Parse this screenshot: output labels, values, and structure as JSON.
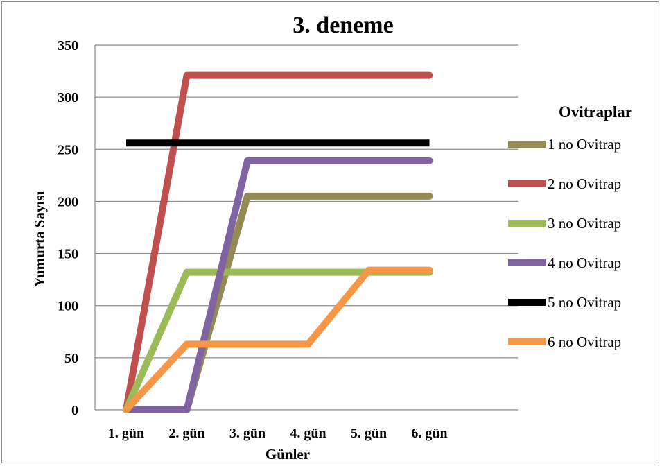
{
  "chart_data": {
    "type": "line",
    "title": "3. deneme",
    "xlabel": "Günler",
    "ylabel": "Yumurta  Sayısı",
    "categories": [
      "1. gün",
      "2. gün",
      "3. gün",
      "4. gün",
      "5. gün",
      "6. gün"
    ],
    "ylim": [
      0,
      350
    ],
    "yticks": [
      "0",
      "50",
      "100",
      "150",
      "200",
      "250",
      "300",
      "350"
    ],
    "grid": true,
    "legend_title": "Ovitraplar",
    "legend_position": "right",
    "series": [
      {
        "name": "1 no Ovitrap",
        "color": "#948a54",
        "values": [
          0,
          0,
          205,
          205,
          205,
          205
        ]
      },
      {
        "name": "2 no Ovitrap",
        "color": "#c0504d",
        "values": [
          0,
          321,
          321,
          321,
          321,
          321
        ]
      },
      {
        "name": "3 no Ovitrap",
        "color": "#9bbb59",
        "values": [
          0,
          132,
          132,
          132,
          132,
          132
        ]
      },
      {
        "name": "4 no Ovitrap",
        "color": "#8064a2",
        "values": [
          0,
          0,
          239,
          239,
          239,
          239
        ]
      },
      {
        "name": "5 no Ovitrap",
        "color": "#000000",
        "values": [
          256,
          256,
          256,
          256,
          256,
          256
        ]
      },
      {
        "name": "6 no Ovitrap",
        "color": "#f79646",
        "values": [
          0,
          63,
          63,
          63,
          134,
          134
        ]
      }
    ]
  }
}
